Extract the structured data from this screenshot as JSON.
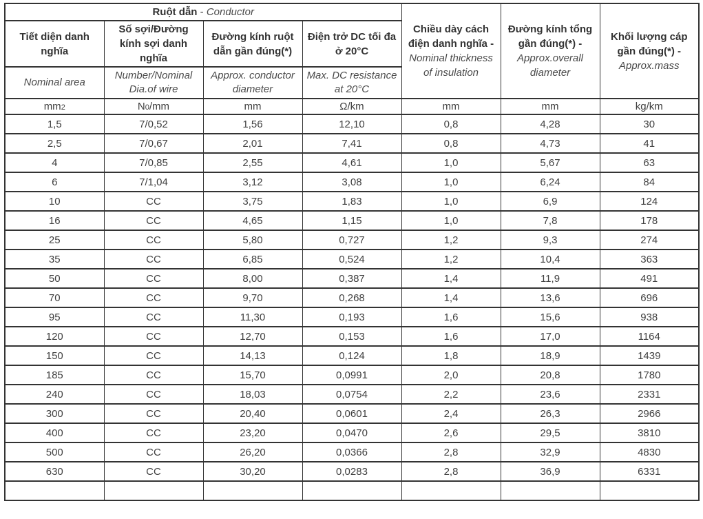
{
  "table": {
    "group_header": {
      "vi": "Ruột dẫn",
      "sep": " - ",
      "en": "Conductor"
    },
    "columns": [
      {
        "id": "nominal-area",
        "vi": "Tiết diện danh nghĩa",
        "en": "Nominal area",
        "unit": {
          "pre": "mm",
          "sub": "2",
          "post": ""
        }
      },
      {
        "id": "strand-count-wire-diameter",
        "vi": "Số sợi/Đường kính sợi danh nghĩa",
        "en": "Number/Nominal Dia.of wire",
        "unit": {
          "pre": "N",
          "sub": "0",
          "post": "/mm"
        }
      },
      {
        "id": "conductor-diameter",
        "vi": "Đường kính ruột dẫn gần đúng(*)",
        "en": "Approx. conductor diameter",
        "unit": {
          "pre": "mm",
          "sub": "",
          "post": ""
        }
      },
      {
        "id": "dc-resistance",
        "vi": "Điện trở DC tối đa ở 20°C",
        "en": "Max. DC resistance at 20°C",
        "unit": {
          "pre": "Ω/km",
          "sub": "",
          "post": ""
        }
      },
      {
        "id": "insulation-thickness",
        "vi": "Chiều dày cách điện danh nghĩa -",
        "en": "Nominal thickness of insulation",
        "unit": {
          "pre": "mm",
          "sub": "",
          "post": ""
        }
      },
      {
        "id": "overall-diameter",
        "vi": "Đường kính tổng gần đúng(*) -",
        "en": "Approx.overall diameter",
        "unit": {
          "pre": "mm",
          "sub": "",
          "post": ""
        }
      },
      {
        "id": "cable-mass",
        "vi": "Khối lượng cáp gần đúng(*) -",
        "en": "Approx.mass",
        "unit": {
          "pre": "kg/km",
          "sub": "",
          "post": ""
        }
      }
    ],
    "rows": [
      [
        "1,5",
        "7/0,52",
        "1,56",
        "12,10",
        "0,8",
        "4,28",
        "30"
      ],
      [
        "2,5",
        "7/0,67",
        "2,01",
        "7,41",
        "0,8",
        "4,73",
        "41"
      ],
      [
        "4",
        "7/0,85",
        "2,55",
        "4,61",
        "1,0",
        "5,67",
        "63"
      ],
      [
        "6",
        "7/1,04",
        "3,12",
        "3,08",
        "1,0",
        "6,24",
        "84"
      ],
      [
        "10",
        "CC",
        "3,75",
        "1,83",
        "1,0",
        "6,9",
        "124"
      ],
      [
        "16",
        "CC",
        "4,65",
        "1,15",
        "1,0",
        "7,8",
        "178"
      ],
      [
        "25",
        "CC",
        "5,80",
        "0,727",
        "1,2",
        "9,3",
        "274"
      ],
      [
        "35",
        "CC",
        "6,85",
        "0,524",
        "1,2",
        "10,4",
        "363"
      ],
      [
        "50",
        "CC",
        "8,00",
        "0,387",
        "1,4",
        "11,9",
        "491"
      ],
      [
        "70",
        "CC",
        "9,70",
        "0,268",
        "1,4",
        "13,6",
        "696"
      ],
      [
        "95",
        "CC",
        "11,30",
        "0,193",
        "1,6",
        "15,6",
        "938"
      ],
      [
        "120",
        "CC",
        "12,70",
        "0,153",
        "1,6",
        "17,0",
        "1164"
      ],
      [
        "150",
        "CC",
        "14,13",
        "0,124",
        "1,8",
        "18,9",
        "1439"
      ],
      [
        "185",
        "CC",
        "15,70",
        "0,0991",
        "2,0",
        "20,8",
        "1780"
      ],
      [
        "240",
        "CC",
        "18,03",
        "0,0754",
        "2,2",
        "23,6",
        "2331"
      ],
      [
        "300",
        "CC",
        "20,40",
        "0,0601",
        "2,4",
        "26,3",
        "2966"
      ],
      [
        "400",
        "CC",
        "23,20",
        "0,0470",
        "2,6",
        "29,5",
        "3810"
      ],
      [
        "500",
        "CC",
        "26,20",
        "0,0366",
        "2,8",
        "32,9",
        "4830"
      ],
      [
        "630",
        "CC",
        "30,20",
        "0,0283",
        "2,8",
        "36,9",
        "6331"
      ]
    ],
    "colors": {
      "border": "#333333",
      "header_text": "#333333",
      "body_text": "#3f3f3f",
      "background": "#ffffff"
    }
  }
}
